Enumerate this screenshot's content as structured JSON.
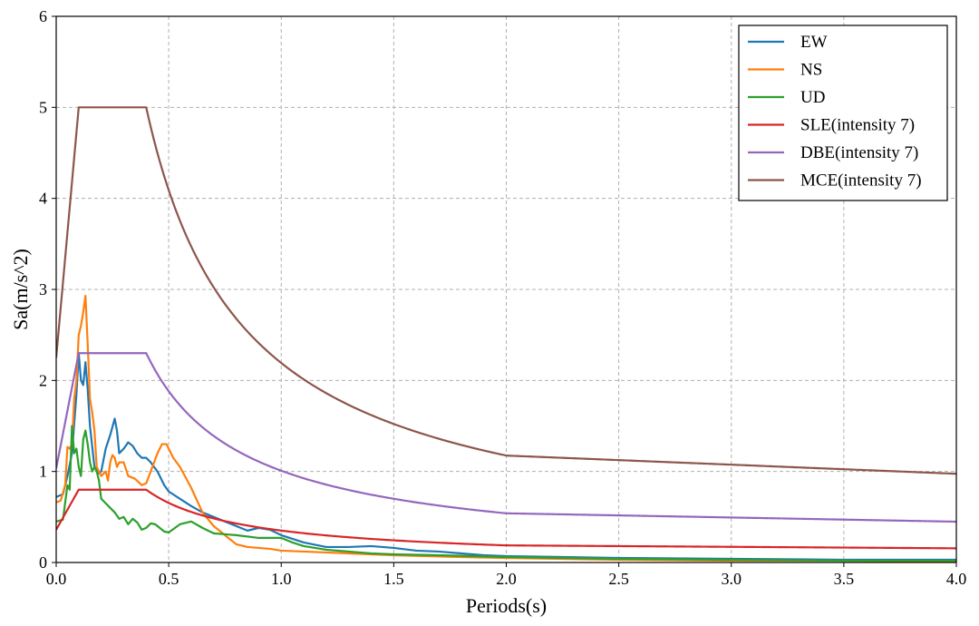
{
  "chart_data": {
    "type": "line",
    "title": "",
    "xlabel": "Periods(s)",
    "ylabel": "Sa(m/s^2)",
    "xlim": [
      0,
      4
    ],
    "ylim": [
      0,
      6
    ],
    "grid": true,
    "legend_position": "top-right",
    "x_ticks": [
      0.0,
      0.5,
      1.0,
      1.5,
      2.0,
      2.5,
      3.0,
      3.5,
      4.0
    ],
    "x_tick_labels": [
      "0.0",
      "0.5",
      "1.0",
      "1.5",
      "2.0",
      "2.5",
      "3.0",
      "3.5",
      "4.0"
    ],
    "y_ticks": [
      0,
      1,
      2,
      3,
      4,
      5,
      6
    ],
    "y_tick_labels": [
      "0",
      "1",
      "2",
      "3",
      "4",
      "5",
      "6"
    ],
    "series": [
      {
        "name": "EW",
        "color": "#1f77b4",
        "points": [
          [
            0,
            0.72
          ],
          [
            0.03,
            0.75
          ],
          [
            0.05,
            0.95
          ],
          [
            0.07,
            1.2
          ],
          [
            0.09,
            1.85
          ],
          [
            0.1,
            2.3
          ],
          [
            0.11,
            2.0
          ],
          [
            0.12,
            1.95
          ],
          [
            0.13,
            2.2
          ],
          [
            0.14,
            1.9
          ],
          [
            0.15,
            1.5
          ],
          [
            0.17,
            1.05
          ],
          [
            0.19,
            0.98
          ],
          [
            0.2,
            1.0
          ],
          [
            0.22,
            1.25
          ],
          [
            0.24,
            1.4
          ],
          [
            0.26,
            1.58
          ],
          [
            0.27,
            1.45
          ],
          [
            0.28,
            1.2
          ],
          [
            0.3,
            1.25
          ],
          [
            0.32,
            1.32
          ],
          [
            0.34,
            1.28
          ],
          [
            0.36,
            1.2
          ],
          [
            0.38,
            1.15
          ],
          [
            0.4,
            1.15
          ],
          [
            0.42,
            1.1
          ],
          [
            0.45,
            1.0
          ],
          [
            0.48,
            0.85
          ],
          [
            0.5,
            0.78
          ],
          [
            0.55,
            0.7
          ],
          [
            0.6,
            0.62
          ],
          [
            0.65,
            0.55
          ],
          [
            0.7,
            0.5
          ],
          [
            0.75,
            0.45
          ],
          [
            0.8,
            0.4
          ],
          [
            0.85,
            0.35
          ],
          [
            0.9,
            0.38
          ],
          [
            0.95,
            0.36
          ],
          [
            1.0,
            0.3
          ],
          [
            1.1,
            0.22
          ],
          [
            1.2,
            0.17
          ],
          [
            1.3,
            0.17
          ],
          [
            1.4,
            0.18
          ],
          [
            1.5,
            0.16
          ],
          [
            1.6,
            0.13
          ],
          [
            1.7,
            0.12
          ],
          [
            1.8,
            0.1
          ],
          [
            1.9,
            0.08
          ],
          [
            2.0,
            0.07
          ],
          [
            2.5,
            0.05
          ],
          [
            3.0,
            0.04
          ],
          [
            3.5,
            0.03
          ],
          [
            4.0,
            0.03
          ]
        ]
      },
      {
        "name": "NS",
        "color": "#ff7f0e",
        "points": [
          [
            0,
            0.66
          ],
          [
            0.02,
            0.68
          ],
          [
            0.04,
            0.85
          ],
          [
            0.05,
            1.27
          ],
          [
            0.06,
            1.25
          ],
          [
            0.07,
            1.3
          ],
          [
            0.08,
            1.8
          ],
          [
            0.09,
            2.0
          ],
          [
            0.1,
            2.5
          ],
          [
            0.11,
            2.6
          ],
          [
            0.12,
            2.75
          ],
          [
            0.13,
            2.93
          ],
          [
            0.14,
            2.4
          ],
          [
            0.15,
            1.8
          ],
          [
            0.16,
            1.65
          ],
          [
            0.17,
            1.45
          ],
          [
            0.18,
            1.05
          ],
          [
            0.2,
            0.95
          ],
          [
            0.22,
            1.0
          ],
          [
            0.23,
            0.9
          ],
          [
            0.24,
            1.1
          ],
          [
            0.25,
            1.18
          ],
          [
            0.26,
            1.15
          ],
          [
            0.27,
            1.05
          ],
          [
            0.28,
            1.1
          ],
          [
            0.3,
            1.1
          ],
          [
            0.32,
            0.95
          ],
          [
            0.35,
            0.92
          ],
          [
            0.38,
            0.85
          ],
          [
            0.4,
            0.87
          ],
          [
            0.42,
            1.0
          ],
          [
            0.45,
            1.2
          ],
          [
            0.47,
            1.3
          ],
          [
            0.49,
            1.3
          ],
          [
            0.5,
            1.25
          ],
          [
            0.52,
            1.15
          ],
          [
            0.55,
            1.05
          ],
          [
            0.6,
            0.82
          ],
          [
            0.65,
            0.55
          ],
          [
            0.7,
            0.4
          ],
          [
            0.75,
            0.3
          ],
          [
            0.8,
            0.2
          ],
          [
            0.85,
            0.17
          ],
          [
            0.9,
            0.16
          ],
          [
            0.95,
            0.15
          ],
          [
            1.0,
            0.13
          ],
          [
            1.1,
            0.12
          ],
          [
            1.2,
            0.11
          ],
          [
            1.3,
            0.1
          ],
          [
            1.5,
            0.08
          ],
          [
            1.8,
            0.06
          ],
          [
            2.0,
            0.05
          ],
          [
            2.5,
            0.03
          ],
          [
            3.0,
            0.02
          ],
          [
            3.5,
            0.02
          ],
          [
            4.0,
            0.01
          ]
        ]
      },
      {
        "name": "UD",
        "color": "#2ca02c",
        "points": [
          [
            0,
            0.45
          ],
          [
            0.03,
            0.47
          ],
          [
            0.05,
            0.85
          ],
          [
            0.06,
            0.8
          ],
          [
            0.07,
            1.5
          ],
          [
            0.08,
            1.2
          ],
          [
            0.09,
            1.25
          ],
          [
            0.1,
            1.05
          ],
          [
            0.11,
            0.95
          ],
          [
            0.12,
            1.35
          ],
          [
            0.13,
            1.45
          ],
          [
            0.14,
            1.3
          ],
          [
            0.15,
            1.1
          ],
          [
            0.16,
            1.0
          ],
          [
            0.17,
            1.05
          ],
          [
            0.18,
            1.0
          ],
          [
            0.19,
            0.9
          ],
          [
            0.2,
            0.7
          ],
          [
            0.22,
            0.65
          ],
          [
            0.24,
            0.6
          ],
          [
            0.26,
            0.55
          ],
          [
            0.28,
            0.48
          ],
          [
            0.3,
            0.5
          ],
          [
            0.32,
            0.42
          ],
          [
            0.34,
            0.48
          ],
          [
            0.36,
            0.44
          ],
          [
            0.38,
            0.36
          ],
          [
            0.4,
            0.38
          ],
          [
            0.42,
            0.43
          ],
          [
            0.44,
            0.42
          ],
          [
            0.46,
            0.38
          ],
          [
            0.48,
            0.34
          ],
          [
            0.5,
            0.33
          ],
          [
            0.55,
            0.42
          ],
          [
            0.6,
            0.45
          ],
          [
            0.65,
            0.38
          ],
          [
            0.7,
            0.32
          ],
          [
            0.8,
            0.3
          ],
          [
            0.9,
            0.27
          ],
          [
            1.0,
            0.27
          ],
          [
            1.05,
            0.22
          ],
          [
            1.1,
            0.18
          ],
          [
            1.2,
            0.14
          ],
          [
            1.3,
            0.12
          ],
          [
            1.4,
            0.1
          ],
          [
            1.5,
            0.09
          ],
          [
            1.7,
            0.08
          ],
          [
            2.0,
            0.06
          ],
          [
            2.5,
            0.04
          ],
          [
            3.0,
            0.03
          ],
          [
            3.5,
            0.02
          ],
          [
            4.0,
            0.02
          ]
        ]
      },
      {
        "name": "SLE(intensity 7)",
        "color": "#d62728",
        "type": "spectrum",
        "amax": 0.8,
        "A0": 0.36
      },
      {
        "name": "DBE(intensity 7)",
        "color": "#9467bd",
        "type": "spectrum",
        "amax": 2.3,
        "A0": 1.035
      },
      {
        "name": "MCE(intensity 7)",
        "color": "#8c564b",
        "type": "spectrum",
        "amax": 5.0,
        "A0": 2.25
      }
    ],
    "spectrum_params": {
      "T1": 0.1,
      "Tg": 0.4,
      "T5g": 2.0,
      "gamma": 0.9,
      "eta1": 0.02,
      "eta2": 1.0
    }
  }
}
